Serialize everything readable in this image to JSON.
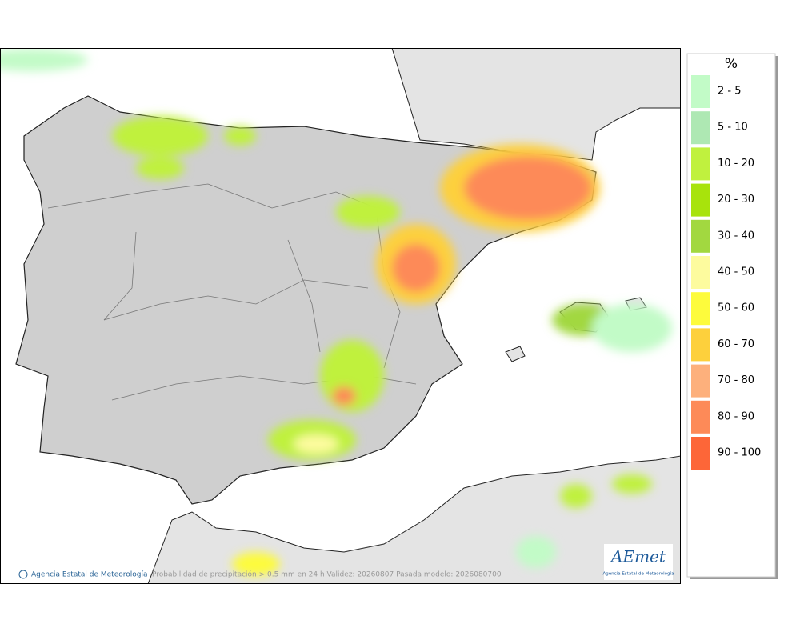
{
  "legend": {
    "title": "%",
    "items": [
      {
        "label": "2 - 5",
        "color": "#c2fbc7"
      },
      {
        "label": "5 - 10",
        "color": "#aee8b3"
      },
      {
        "label": "10 - 20",
        "color": "#c0f13e"
      },
      {
        "label": "20 - 30",
        "color": "#a8e30c"
      },
      {
        "label": "30 - 40",
        "color": "#a2d840"
      },
      {
        "label": "40 - 50",
        "color": "#fdfb9e"
      },
      {
        "label": "50 - 60",
        "color": "#fdfb3c"
      },
      {
        "label": "60 - 70",
        "color": "#fdd03c"
      },
      {
        "label": "70 - 80",
        "color": "#fdb07c"
      },
      {
        "label": "80 - 90",
        "color": "#fd8a58"
      },
      {
        "label": "90 - 100",
        "color": "#fd6638"
      }
    ]
  },
  "footer": {
    "credit": "Agencia Estatal de Meteorología",
    "caption": "Probabilidad de precipitación > 0.5 mm en 24 h Validez: 20260807 Pasada modelo: 2026080700"
  },
  "logo": {
    "name": "AEmet",
    "subtitle": "Agencia Estatal de Meteorología"
  }
}
